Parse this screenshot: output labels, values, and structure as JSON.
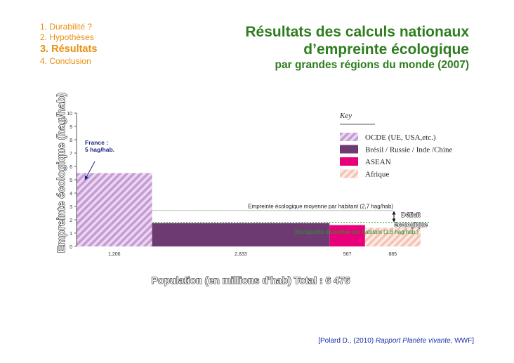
{
  "nav": {
    "items": [
      {
        "label": "1. Durabilité ?",
        "active": false
      },
      {
        "label": "2. Hypothèses",
        "active": false
      },
      {
        "label": "3. Résultats",
        "active": true
      },
      {
        "label": "4. Conclusion",
        "active": false
      }
    ]
  },
  "header": {
    "title_line1": "Résultats des calculs nationaux",
    "title_line2": "d’empreinte écologique",
    "subtitle": "par grandes régions du monde (2007)"
  },
  "citation": {
    "prefix": "[Polard D., (2010) ",
    "title": "Rapport Planète vivante",
    "suffix": ", WWF]"
  },
  "colors": {
    "nav": "#e8900f",
    "title": "#2e7d1f",
    "citation": "#1a30a6",
    "ocde": "#c79ad6",
    "bric": "#6e3a72",
    "asean": "#e8007a",
    "afrique": "#f6c3b2",
    "deficit_line": "#2f8f2f"
  },
  "chart_data": {
    "type": "bar",
    "variant": "variable-width",
    "ylabel": "Empreinte écologique (hag/hab)",
    "xlabel": "Population (en millions d'hab) Total : 6 476",
    "ylim": [
      0,
      10
    ],
    "yticks": [
      0,
      1,
      2,
      3,
      4,
      5,
      6,
      7,
      8,
      9,
      10
    ],
    "series": [
      {
        "name": "OCDE (UE, USA,etc.)",
        "population": 1206,
        "value": 5.5,
        "pattern": "hatch",
        "color": "#c79ad6"
      },
      {
        "name": "Brésil / Russie / Inde  /Chine",
        "population": 2833,
        "value": 1.75,
        "pattern": "solid",
        "color": "#6e3a72"
      },
      {
        "name": "ASEAN",
        "population": 567,
        "value": 1.6,
        "pattern": "solid",
        "color": "#e8007a"
      },
      {
        "name": "Afrique",
        "population": 885,
        "value": 1.4,
        "pattern": "hatch",
        "color": "#f6c3b2"
      }
    ],
    "population_labels": [
      "1,206",
      "2,833",
      "567",
      "885"
    ],
    "reference_lines": [
      {
        "value": 2.7,
        "label": "Empreinte écologique moyenne par habitant (2,7 hag/hab)",
        "style": "solid"
      },
      {
        "value": 1.8,
        "label": "Biocapacité disponible par habitant (1,8 hag/hab.)",
        "style": "dotted"
      }
    ],
    "annotations": {
      "france": "France :\n5 hag/hab.",
      "deficit_line1": "Déficit",
      "deficit_line2": "écologique"
    },
    "legend": {
      "title": "Key",
      "placement": "top-right"
    }
  }
}
